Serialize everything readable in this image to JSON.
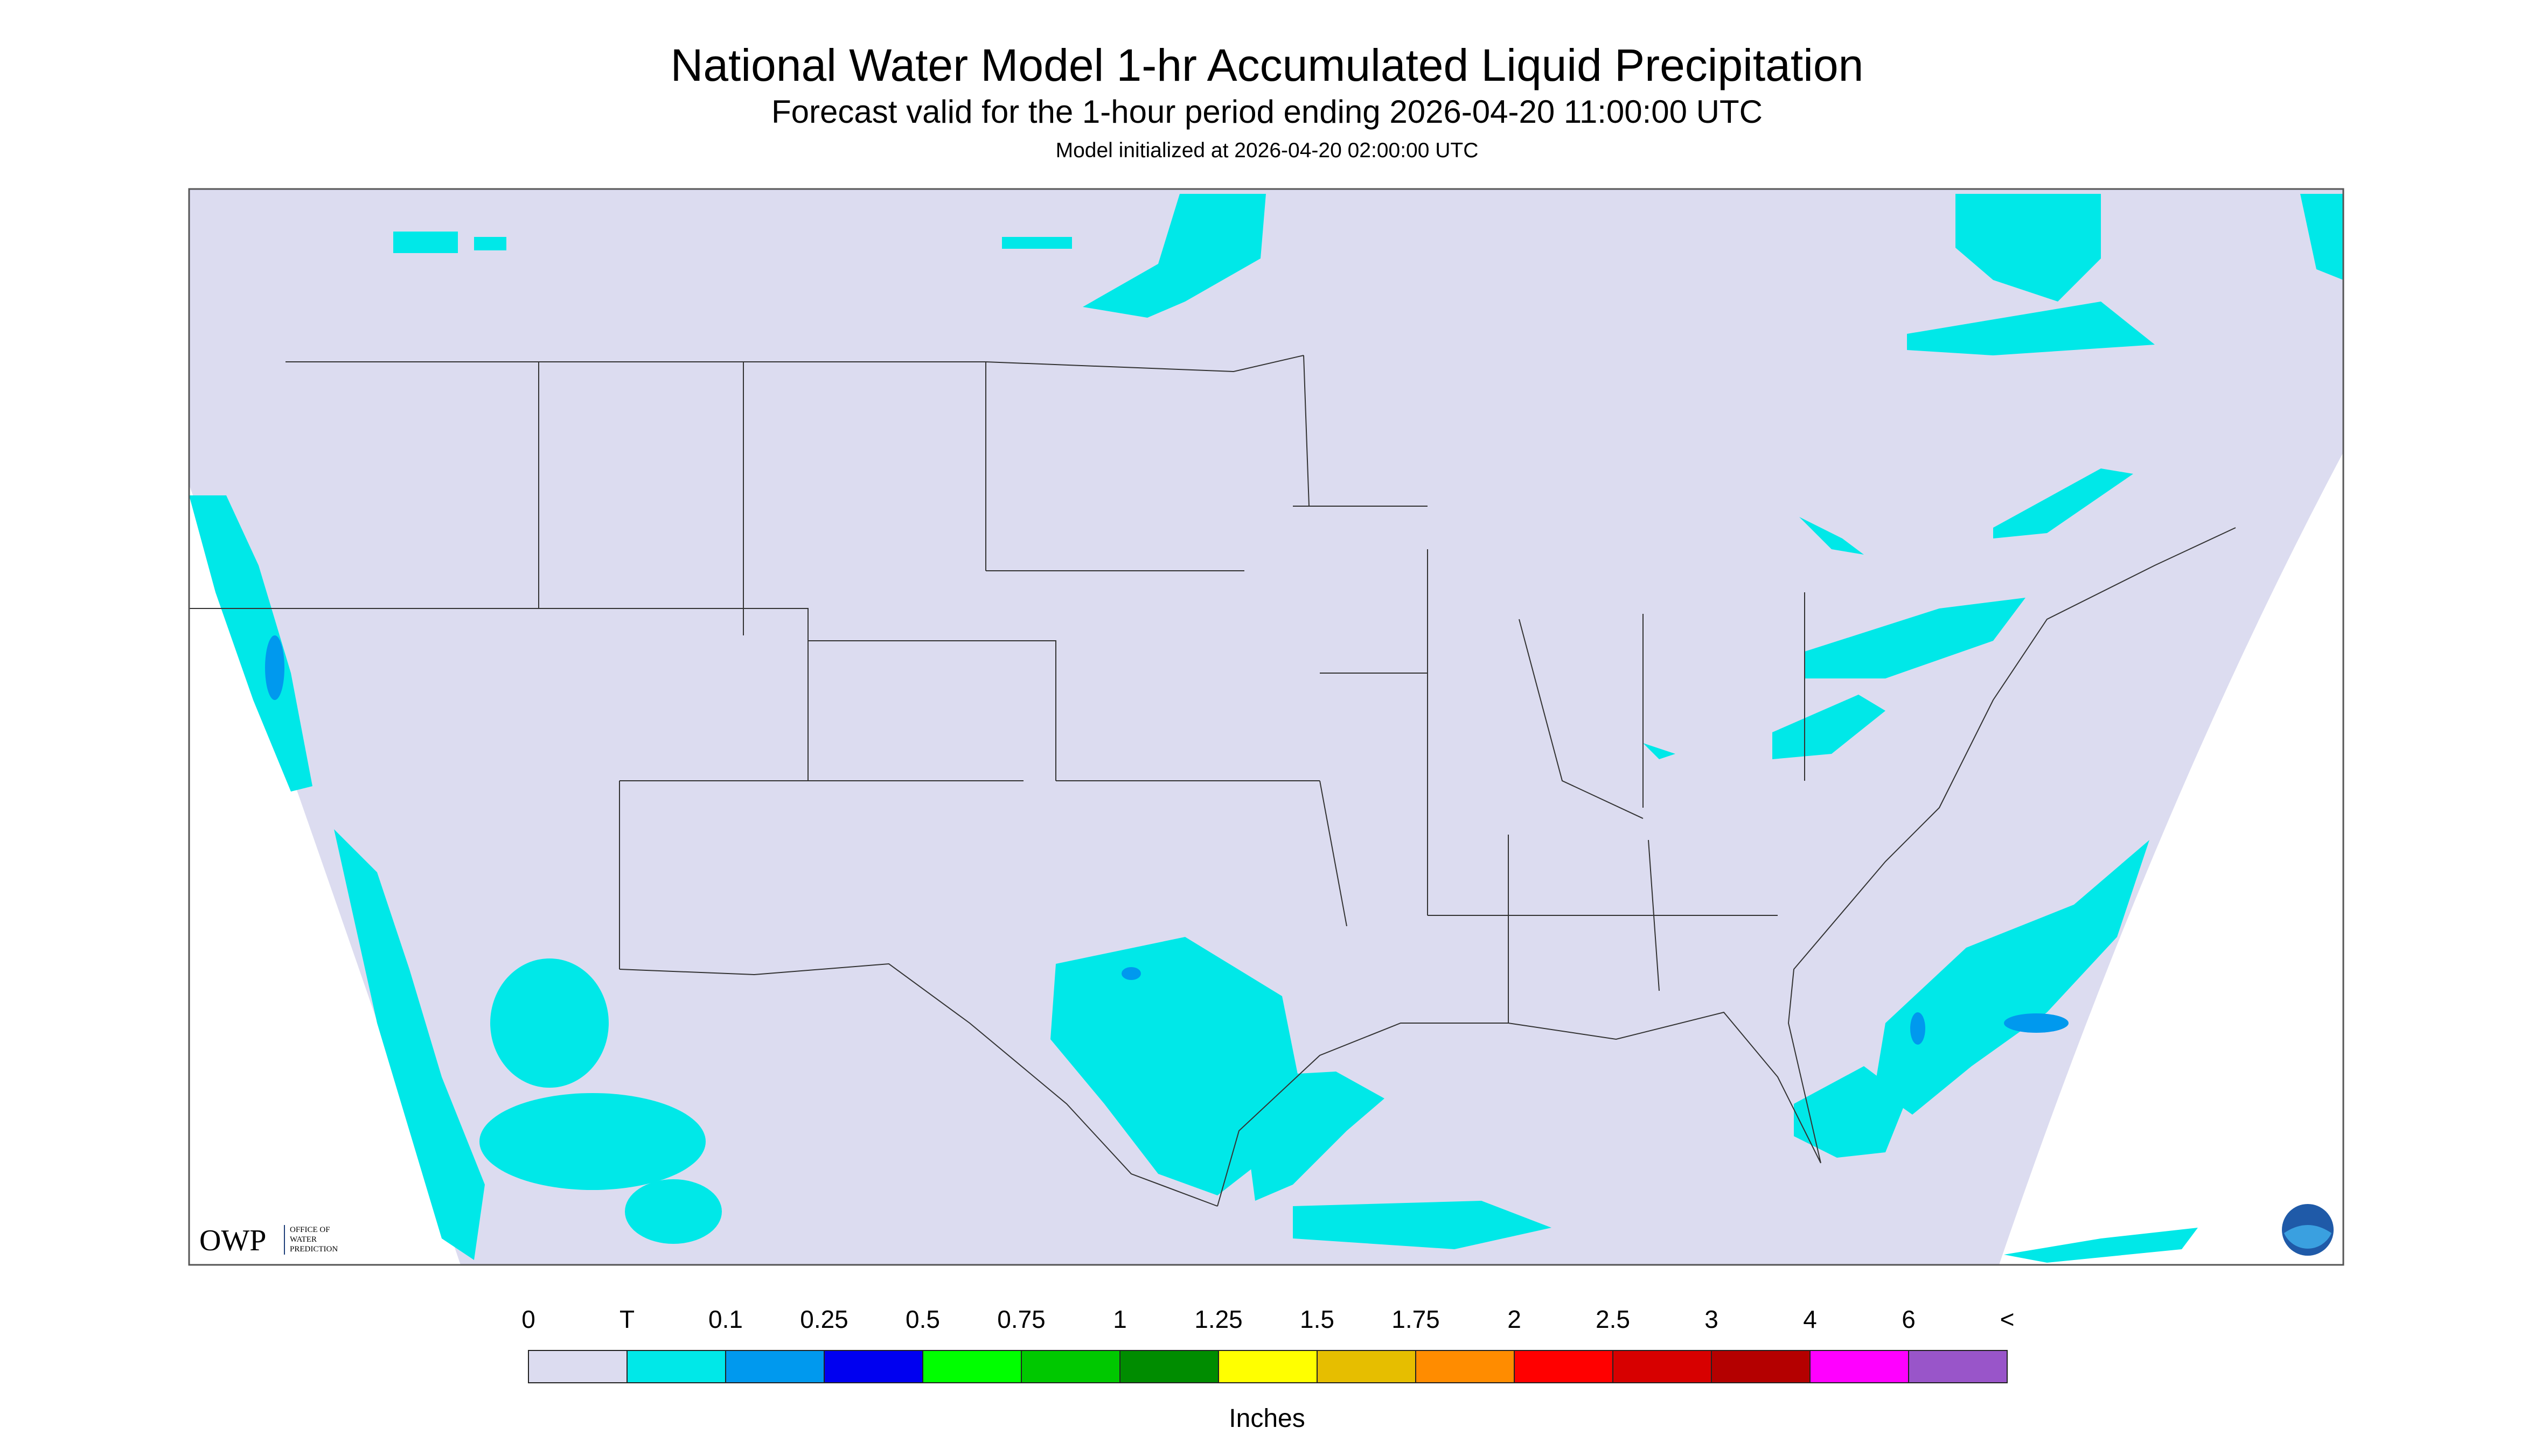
{
  "header": {
    "title": "National Water Model 1-hr Accumulated Liquid Precipitation",
    "subtitle": "Forecast valid for the 1-hour period ending 2026-04-20 11:00:00 UTC",
    "initialized": "Model initialized at 2026-04-20 02:00:00 UTC"
  },
  "legend": {
    "labels": [
      "0",
      "T",
      "0.1",
      "0.25",
      "0.5",
      "0.75",
      "1",
      "1.25",
      "1.5",
      "1.75",
      "2",
      "2.5",
      "3",
      "4",
      "6",
      "<"
    ],
    "colors": [
      "#dcdcf0",
      "#00e8e8",
      "#0099ee",
      "#0000f0",
      "#00ff00",
      "#00c800",
      "#008c00",
      "#ffff00",
      "#e6be00",
      "#ff8c00",
      "#ff0000",
      "#d70000",
      "#b40000",
      "#ff00ff",
      "#9955c9"
    ],
    "unit": "Inches"
  },
  "logo": {
    "name": "OWP",
    "lines": [
      "OFFICE OF",
      "WATER",
      "PREDICTION"
    ]
  }
}
